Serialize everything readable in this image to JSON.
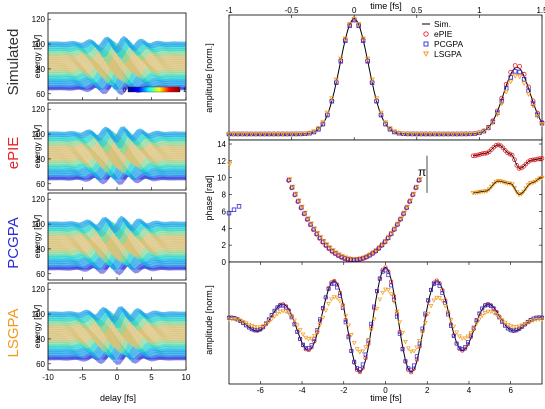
{
  "left": {
    "row_titles": [
      {
        "text": "Simulated",
        "color": "#333333"
      },
      {
        "text": "ePIE",
        "color": "#e8242a"
      },
      {
        "text": "PCGPA",
        "color": "#2a2ad8"
      },
      {
        "text": "LSGPA",
        "color": "#f29a1e"
      }
    ],
    "ylabel": "energy [eV]",
    "xlabel": "delay [fs]",
    "y_ticks": [
      60,
      80,
      100,
      120
    ],
    "y_tick_labels": [
      "120",
      "100",
      "80",
      "60"
    ],
    "x_ticks": [
      -10,
      -5,
      0,
      5,
      10
    ],
    "x_tick_labels": [
      "-10",
      "-5",
      "0",
      "5",
      "10"
    ],
    "colorbar": {
      "min_label": "0",
      "max_label": "1"
    }
  },
  "chart_data": [
    {
      "type": "line",
      "title": "",
      "xlabel": "time [fs]",
      "ylabel": "amplitude [norm.]",
      "xlim": [
        -1,
        1.5
      ],
      "x_ticks": [
        -1,
        -0.5,
        0,
        0.5,
        1,
        1.5
      ],
      "x_tick_labels": [
        "-1",
        "-0.5",
        "0",
        "0.5",
        "1",
        "1.5"
      ],
      "ylim": [
        0,
        1
      ],
      "legend": [
        "Sim.",
        "ePIE",
        "PCGPA",
        "LSGPA"
      ],
      "legend_position": "top-right",
      "series": [
        {
          "name": "Sim.",
          "color": "#000000",
          "peaks": [
            {
              "center": 0.0,
              "height": 1.0,
              "width": 0.16
            },
            {
              "center": 1.3,
              "height": 0.58,
              "width": 0.15
            }
          ]
        },
        {
          "name": "ePIE",
          "color": "#e8242a",
          "peaks": [
            {
              "center": 0.0,
              "height": 1.0,
              "width": 0.16
            },
            {
              "center": 1.3,
              "height": 0.6,
              "width": 0.15
            }
          ]
        },
        {
          "name": "PCGPA",
          "color": "#2a2ad8",
          "peaks": [
            {
              "center": 0.0,
              "height": 0.99,
              "width": 0.16
            },
            {
              "center": 1.3,
              "height": 0.55,
              "width": 0.15
            }
          ]
        },
        {
          "name": "LSGPA",
          "color": "#f29a1e",
          "peaks": [
            {
              "center": 0.0,
              "height": 1.0,
              "width": 0.165
            },
            {
              "center": 1.3,
              "height": 0.51,
              "width": 0.15
            }
          ]
        }
      ]
    },
    {
      "type": "scatter",
      "title": "",
      "xlabel": "",
      "ylabel": "phase [rad]",
      "xlim": [
        -1,
        1.5
      ],
      "ylim": [
        0,
        14
      ],
      "y_ticks": [
        0,
        2,
        4,
        6,
        8,
        10,
        12,
        14
      ],
      "y_tick_labels": [
        "0",
        "2",
        "4",
        "6",
        "8",
        "10",
        "12",
        "14"
      ],
      "annotation": "π",
      "parabola": {
        "vertex_x": 0.0,
        "vertex_y": 0.2,
        "curvature": 35.0,
        "x_range": [
          -0.52,
          0.52
        ]
      },
      "left_points": {
        "x": [
          -1.0,
          -0.96,
          -0.92
        ],
        "y": [
          5.8,
          6.2,
          6.6
        ]
      },
      "right_curves": [
        {
          "name": "ePIE",
          "color": "#e8242a",
          "x": [
            0.95,
            1.05,
            1.15,
            1.25,
            1.32,
            1.42,
            1.5
          ],
          "y": [
            12.6,
            12.9,
            13.9,
            12.8,
            11.1,
            12.1,
            12.3
          ]
        },
        {
          "name": "LSGPA",
          "color": "#f29a1e",
          "x": [
            0.95,
            1.05,
            1.15,
            1.25,
            1.32,
            1.42,
            1.5
          ],
          "y": [
            8.2,
            8.4,
            9.6,
            9.3,
            8.0,
            9.4,
            10.0
          ]
        }
      ]
    },
    {
      "type": "line",
      "title": "",
      "xlabel": "time [fs]",
      "ylabel": "amplitude [norm.]",
      "xlim": [
        -7.5,
        7.5
      ],
      "x_ticks": [
        -6,
        -4,
        -2,
        0,
        2,
        4,
        6
      ],
      "x_tick_labels": [
        "-6",
        "-4",
        "-2",
        "0",
        "2",
        "4",
        "6"
      ],
      "ylim": [
        -1.15,
        1.1
      ],
      "oscillation": {
        "period": 2.5,
        "envelope_sigma": 3.3,
        "offset": 0.0
      },
      "series": [
        {
          "name": "Sim.",
          "color": "#000000",
          "amplitude": 1.0
        },
        {
          "name": "ePIE",
          "color": "#e8242a",
          "amplitude": 1.0
        },
        {
          "name": "PCGPA",
          "color": "#2a2ad8",
          "amplitude": 0.95
        },
        {
          "name": "LSGPA",
          "color": "#f29a1e",
          "amplitude": 0.6
        }
      ]
    }
  ]
}
